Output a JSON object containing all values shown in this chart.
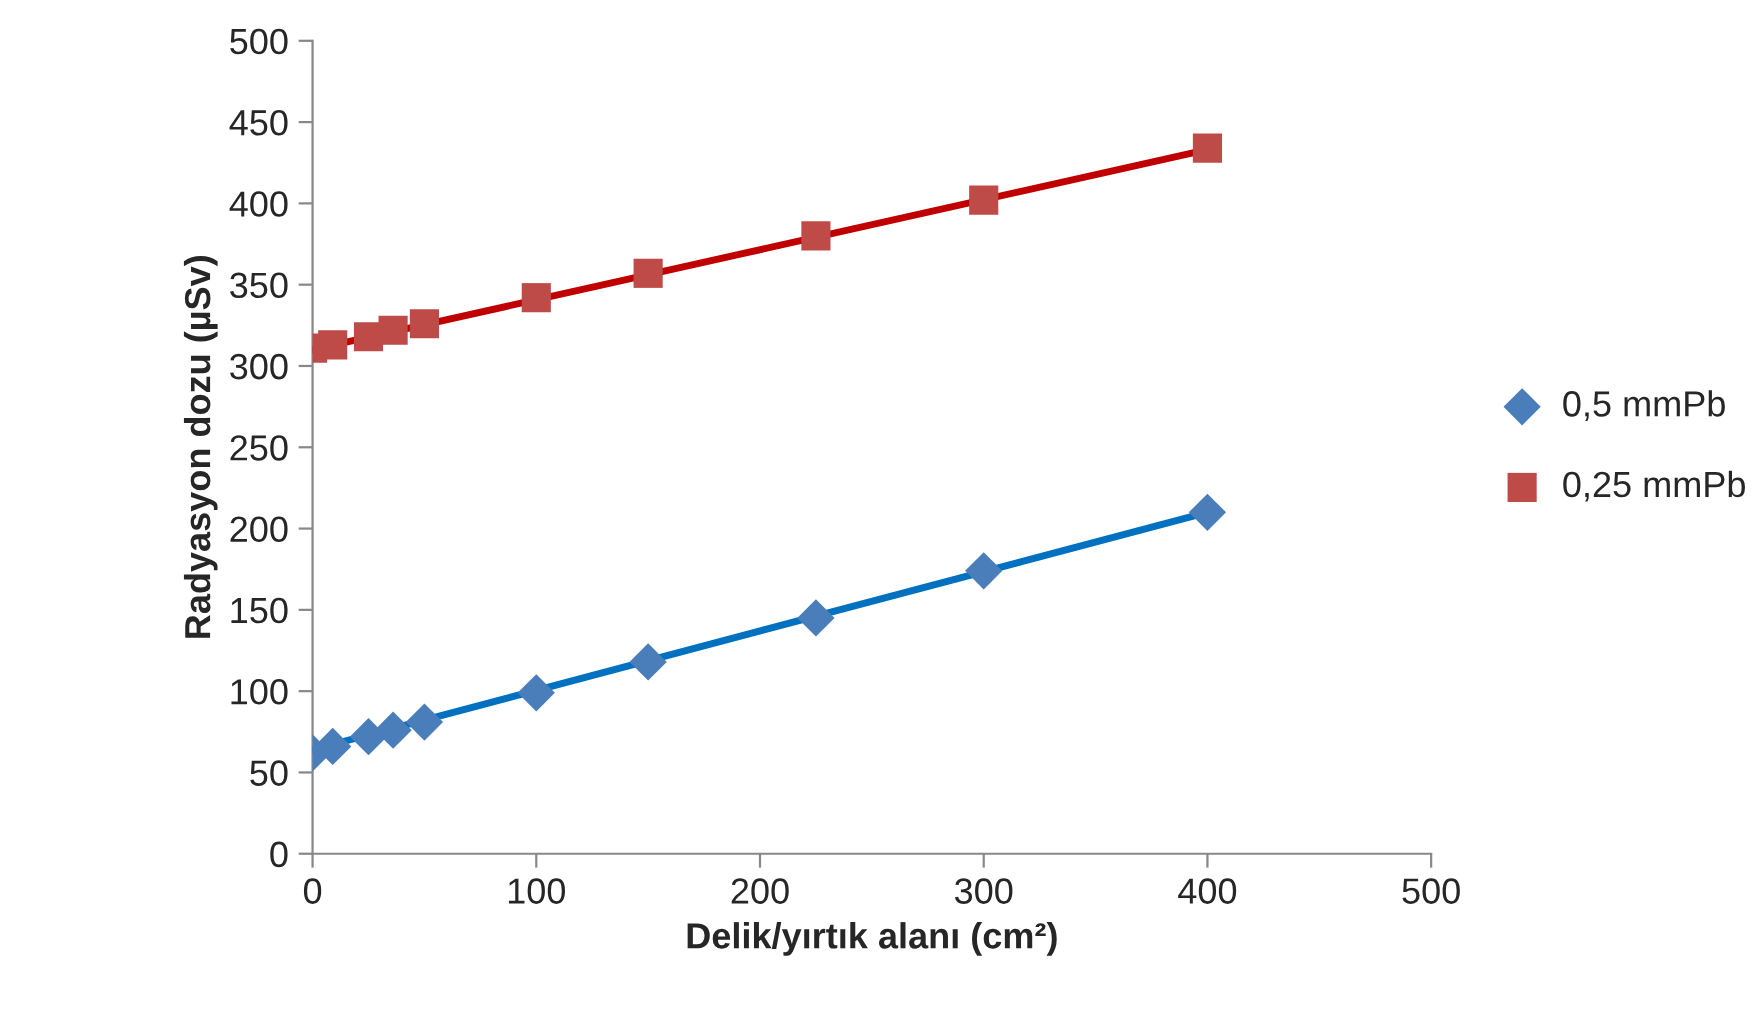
{
  "chart_data": {
    "type": "scatter",
    "xlabel": "Delik/yırtık alanı (cm²)",
    "ylabel": "Radyasyon dozu (µSv)",
    "xlim": [
      0,
      500
    ],
    "xticks": [
      0,
      100,
      200,
      300,
      400,
      500
    ],
    "ylim": [
      0,
      500
    ],
    "yticks": [
      0,
      50,
      100,
      150,
      200,
      250,
      300,
      350,
      400,
      450,
      500
    ],
    "grid": false,
    "legend": "right",
    "series": [
      {
        "name": "0,5 mmPb",
        "marker": "diamond",
        "color": "#4a7ebb",
        "x": [
          0,
          9,
          25,
          36,
          50,
          100,
          150,
          225,
          300,
          400
        ],
        "values": [
          62,
          66,
          72,
          76,
          81,
          99,
          118,
          145,
          174,
          210
        ]
      },
      {
        "name": "0,25 mmPb",
        "marker": "square",
        "color": "#be4b48",
        "x": [
          0,
          9,
          25,
          36,
          50,
          100,
          150,
          225,
          300,
          400
        ],
        "values": [
          311,
          313,
          318,
          322,
          326,
          342,
          357,
          380,
          402,
          434
        ]
      },
      {
        "type": "line",
        "marker": "none",
        "color": "#0070c0",
        "x": [
          0,
          400
        ],
        "values": [
          64,
          210
        ]
      },
      {
        "type": "line",
        "marker": "none",
        "color": "#c00000",
        "x": [
          0,
          400
        ],
        "values": [
          310,
          433
        ]
      }
    ]
  }
}
